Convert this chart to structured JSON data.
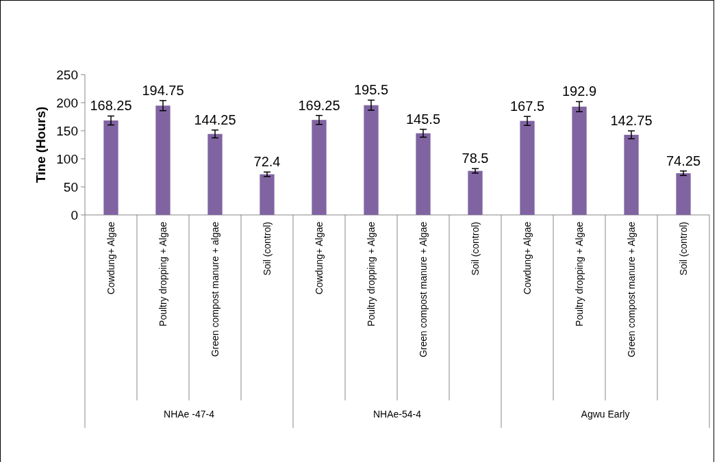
{
  "chart_data": {
    "type": "bar",
    "ylabel": "Tine (Hours)",
    "categories": [
      "Cowdung+ Algae",
      "Poultry dropping + Algae",
      "Green compost manure + algae",
      "Soil (control)",
      "Cowdung+ Algae",
      "Poultry dropping + Algae",
      "Green compost manure + Algae",
      "Soil (control)",
      "Cowdung+ Algae",
      "Poultry dropping + Algae",
      "Green compost manure + Algae",
      "Soil (control)"
    ],
    "values": [
      168.25,
      194.75,
      144.25,
      72.4,
      169.25,
      195.5,
      145.5,
      78.5,
      167.5,
      192.9,
      142.75,
      74.25
    ],
    "errors": [
      8,
      9,
      7,
      4,
      8,
      9,
      7,
      4,
      8,
      9,
      7,
      4
    ],
    "color": "#8064a2",
    "data_labels": true,
    "ylim": [
      0,
      250
    ],
    "yticks": [
      0,
      50,
      100,
      150,
      200,
      250
    ],
    "grid": false,
    "annotations": [
      "NHAe -47-4",
      "NHAe-54-4",
      "Agwu Early"
    ]
  }
}
